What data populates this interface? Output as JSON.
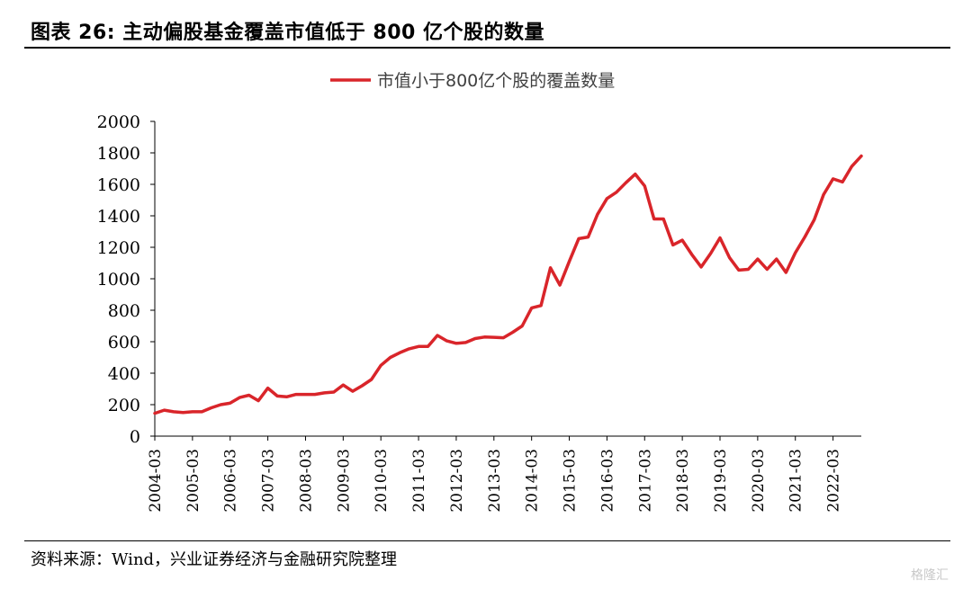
{
  "figure": {
    "title": "图表 26:  主动偏股基金覆盖市值低于 800 亿个股的数量",
    "source": "资料来源：Wind，兴业证券经济与金融研究院整理",
    "watermark": "格隆汇"
  },
  "chart_data": {
    "type": "line",
    "title": "",
    "xlabel": "",
    "ylabel": "",
    "ylim": [
      0,
      2000
    ],
    "yticks": [
      0,
      200,
      400,
      600,
      800,
      1000,
      1200,
      1400,
      1600,
      1800,
      2000
    ],
    "grid": false,
    "legend_position": "top-center",
    "color": "#d9252a",
    "x_tick_labels": [
      "2004-03",
      "2005-03",
      "2006-03",
      "2007-03",
      "2008-03",
      "2009-03",
      "2010-03",
      "2011-03",
      "2012-03",
      "2013-03",
      "2014-03",
      "2015-03",
      "2016-03",
      "2017-03",
      "2018-03",
      "2019-03",
      "2020-03",
      "2021-03",
      "2022-03"
    ],
    "series": [
      {
        "name": "市值小于800亿个股的覆盖数量",
        "x": [
          "2004-03",
          "2004-06",
          "2004-09",
          "2004-12",
          "2005-03",
          "2005-06",
          "2005-09",
          "2005-12",
          "2006-03",
          "2006-06",
          "2006-09",
          "2006-12",
          "2007-03",
          "2007-06",
          "2007-09",
          "2007-12",
          "2008-03",
          "2008-06",
          "2008-09",
          "2008-12",
          "2009-03",
          "2009-06",
          "2009-09",
          "2009-12",
          "2010-03",
          "2010-06",
          "2010-09",
          "2010-12",
          "2011-03",
          "2011-06",
          "2011-09",
          "2011-12",
          "2012-03",
          "2012-06",
          "2012-09",
          "2012-12",
          "2013-03",
          "2013-06",
          "2013-09",
          "2013-12",
          "2014-03",
          "2014-06",
          "2014-09",
          "2014-12",
          "2015-03",
          "2015-06",
          "2015-09",
          "2015-12",
          "2016-03",
          "2016-06",
          "2016-09",
          "2016-12",
          "2017-03",
          "2017-06",
          "2017-09",
          "2017-12",
          "2018-03",
          "2018-06",
          "2018-09",
          "2018-12",
          "2019-03",
          "2019-06",
          "2019-09",
          "2019-12",
          "2020-03",
          "2020-06",
          "2020-09",
          "2020-12",
          "2021-03",
          "2021-06",
          "2021-09",
          "2021-12",
          "2022-03",
          "2022-06",
          "2022-09",
          "2022-12"
        ],
        "values": [
          145,
          165,
          155,
          150,
          155,
          155,
          180,
          200,
          210,
          245,
          260,
          225,
          305,
          255,
          250,
          265,
          265,
          265,
          275,
          280,
          325,
          285,
          320,
          360,
          450,
          500,
          530,
          555,
          570,
          570,
          640,
          605,
          590,
          595,
          620,
          630,
          628,
          625,
          660,
          700,
          815,
          830,
          1070,
          960,
          1110,
          1255,
          1265,
          1410,
          1510,
          1550,
          1610,
          1665,
          1590,
          1380,
          1380,
          1215,
          1245,
          1155,
          1075,
          1160,
          1260,
          1135,
          1055,
          1060,
          1125,
          1060,
          1125,
          1040,
          1165,
          1265,
          1375,
          1535,
          1635,
          1615,
          1715,
          1780
        ]
      }
    ]
  }
}
